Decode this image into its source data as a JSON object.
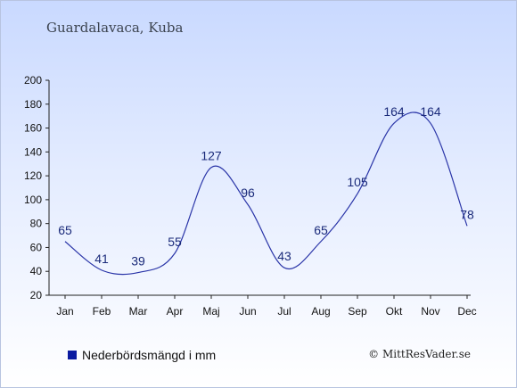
{
  "chart_data": {
    "type": "line",
    "title": "Guardalavaca, Kuba",
    "categories": [
      "Jan",
      "Feb",
      "Mar",
      "Apr",
      "Maj",
      "Jun",
      "Jul",
      "Aug",
      "Sep",
      "Okt",
      "Nov",
      "Dec"
    ],
    "series": [
      {
        "name": "Nederbördsmängd i mm",
        "values": [
          65,
          41,
          39,
          55,
          127,
          96,
          43,
          65,
          105,
          164,
          164,
          78
        ],
        "color": "#2a35a8"
      }
    ],
    "ylim": [
      20,
      200
    ],
    "yticks": [
      20,
      40,
      60,
      80,
      100,
      120,
      140,
      160,
      180,
      200
    ],
    "grid": false,
    "legend": "bottom-left"
  },
  "legend": {
    "label": "Nederbördsmängd i mm",
    "swatch_color": "#0a1aa0"
  },
  "credit": "© MittResVader.se"
}
